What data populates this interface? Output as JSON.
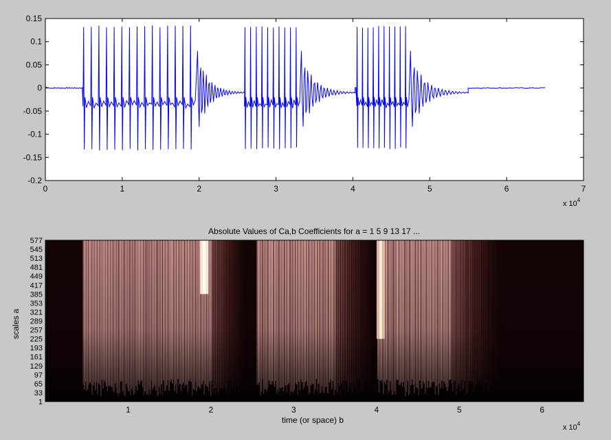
{
  "chart_data": [
    {
      "type": "line",
      "title": "",
      "xlabel": "",
      "ylabel": "",
      "xlim": [
        0,
        7
      ],
      "ylim": [
        -0.2,
        0.15
      ],
      "x_exponent_label": "x 10^4",
      "x_ticks": [
        "0",
        "1",
        "2",
        "3",
        "4",
        "5",
        "6",
        "7"
      ],
      "y_ticks": [
        "0.15",
        "0.1",
        "0.05",
        "0",
        "-0.05",
        "-0.1",
        "-0.15",
        "-0.2"
      ],
      "grid": false,
      "color": "#0000ff",
      "segments": [
        {
          "start": 0.49,
          "end": 1.98,
          "decay_end": 2.6,
          "pulses": 15,
          "amp_pos": 0.135,
          "amp_neg": -0.135
        },
        {
          "start": 2.59,
          "end": 3.33,
          "decay_end": 4.03,
          "pulses": 10,
          "amp_pos": 0.133,
          "amp_neg": -0.132
        },
        {
          "start": 4.05,
          "end": 4.75,
          "decay_end": 5.5,
          "pulses": 10,
          "amp_pos": 0.134,
          "amp_neg": -0.132
        }
      ],
      "series": [
        {
          "x": [
            0,
            0.1,
            0.2,
            0.3,
            0.4,
            0.49,
            0.5,
            0.6,
            0.7,
            0.8,
            0.9,
            1.0,
            1.1,
            1.2,
            1.3,
            1.4,
            1.5,
            1.6,
            1.7,
            1.8,
            1.9,
            2.0,
            2.1,
            2.2,
            2.3,
            2.4,
            2.5,
            2.6,
            2.7,
            2.8,
            2.9,
            3.0,
            3.1,
            3.2,
            3.3,
            3.4,
            3.5,
            3.6,
            3.7,
            3.8,
            3.9,
            4.0,
            4.1,
            4.2,
            4.3,
            4.4,
            4.5,
            4.6,
            4.7,
            4.8,
            4.9,
            5.0,
            5.1,
            5.2,
            5.3,
            5.4,
            5.5,
            5.6,
            5.8,
            6.0,
            6.2,
            6.5
          ],
          "y": [
            0.002,
            0.001,
            0.0,
            0.0,
            0.0,
            0.0,
            -0.04,
            -0.04,
            -0.038,
            -0.04,
            -0.038,
            -0.04,
            -0.038,
            -0.036,
            -0.038,
            -0.036,
            -0.036,
            -0.034,
            -0.034,
            -0.034,
            -0.03,
            0.04,
            0.02,
            -0.015,
            0.01,
            -0.005,
            0.002,
            -0.04,
            -0.037,
            -0.034,
            -0.034,
            -0.033,
            -0.03,
            -0.03,
            -0.02,
            0.03,
            0.02,
            -0.012,
            0.008,
            -0.004,
            0.002,
            0.0,
            -0.04,
            -0.04,
            -0.036,
            -0.036,
            -0.034,
            -0.034,
            -0.03,
            0.04,
            0.02,
            -0.015,
            0.008,
            -0.004,
            0.002,
            0.001,
            0.0,
            0.0,
            0.0,
            0.0,
            0.0,
            0.0
          ]
        }
      ]
    },
    {
      "type": "heatmap",
      "title": "Absolute Values of Ca,b Coefficients for a =  1 5 9 13 17 ...",
      "xlabel": "time (or space) b",
      "ylabel": "scales a",
      "xlim": [
        0,
        6.5
      ],
      "x_exponent_label": "x 10^4",
      "x_ticks": [
        "1",
        "2",
        "3",
        "4",
        "5",
        "6"
      ],
      "y_ticks": [
        "577",
        "545",
        "513",
        "481",
        "449",
        "417",
        "385",
        "353",
        "321",
        "289",
        "257",
        "225",
        "193",
        "161",
        "129",
        "97",
        "65",
        "33",
        "1"
      ],
      "ylim": [
        1,
        577
      ],
      "colormap": "pink-dark",
      "colormap_stops": [
        "#140404",
        "#3a1818",
        "#7a4848",
        "#b07c7c",
        "#d8aa9a",
        "#f0d8b8",
        "#fff4e0"
      ],
      "bright_spots": [
        {
          "x": 1.92,
          "y_from": 385,
          "y_to": 577,
          "level": 1.0
        },
        {
          "x": 4.05,
          "y_from": 225,
          "y_to": 577,
          "level": 0.75
        }
      ],
      "segments": [
        {
          "start": 0.45,
          "end": 2.0,
          "fade_end": 2.4
        },
        {
          "start": 2.55,
          "end": 3.5,
          "fade_end": 3.95
        },
        {
          "start": 4.0,
          "end": 4.9,
          "fade_end": 5.5
        }
      ]
    }
  ]
}
